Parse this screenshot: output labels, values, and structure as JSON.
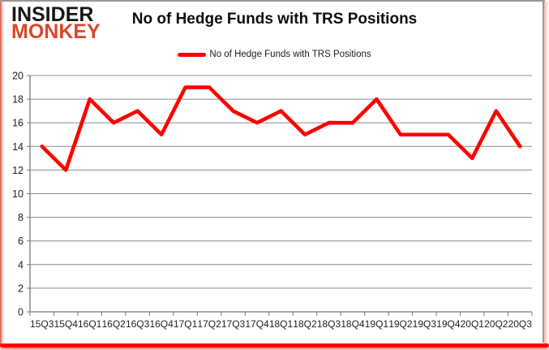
{
  "logo": {
    "line1": "INSIDER",
    "line2": "MONKEY"
  },
  "header": {
    "title": "No of Hedge Funds with TRS Positions"
  },
  "legend": {
    "label": "No of Hedge Funds with TRS Positions"
  },
  "colors": {
    "series": "#ff0000",
    "grid": "#8c8c8c",
    "axis": "#7a7a7a",
    "tick_text": "#1f1f1f",
    "logo_black": "#161616",
    "logo_red": "#d9472b",
    "frame_red": "#ff0000",
    "frame_gray": "#979797"
  },
  "chart_data": {
    "type": "line",
    "title": "No of Hedge Funds with TRS Positions",
    "categories": [
      "15Q3",
      "15Q4",
      "16Q1",
      "16Q2",
      "16Q3",
      "16Q4",
      "17Q1",
      "17Q2",
      "17Q3",
      "17Q4",
      "18Q1",
      "18Q2",
      "18Q3",
      "18Q4",
      "19Q1",
      "19Q2",
      "19Q3",
      "19Q4",
      "20Q1",
      "20Q2",
      "20Q3"
    ],
    "series": [
      {
        "name": "No of Hedge Funds with TRS Positions",
        "color": "#ff0000",
        "values": [
          14,
          12,
          18,
          16,
          17,
          15,
          19,
          19,
          17,
          16,
          17,
          15,
          16,
          16,
          18,
          15,
          15,
          15,
          13,
          17,
          14
        ]
      }
    ],
    "xlabel": "",
    "ylabel": "",
    "ylim": [
      0,
      20
    ],
    "yticks": [
      0,
      2,
      4,
      6,
      8,
      10,
      12,
      14,
      16,
      18,
      20
    ],
    "grid": "horizontal",
    "legend_position": "top-center"
  }
}
